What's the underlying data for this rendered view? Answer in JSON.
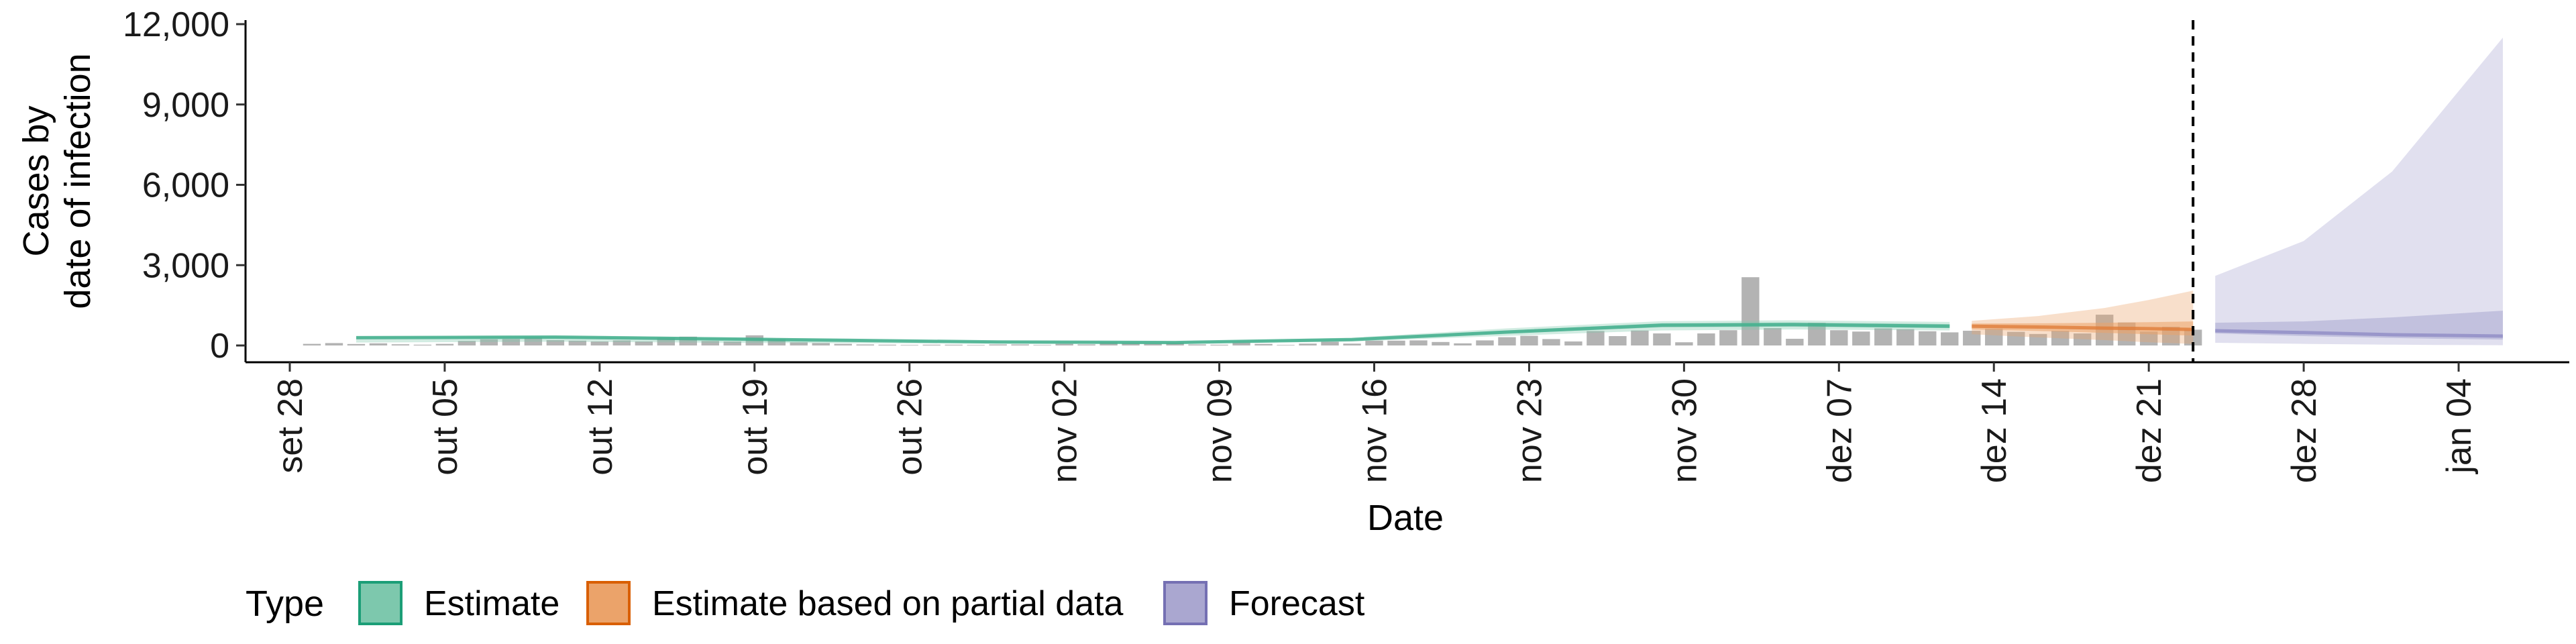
{
  "chart_data": {
    "type": "area",
    "title": "",
    "xlabel": "Date",
    "ylabel_lines": [
      "Cases by",
      "date of infection"
    ],
    "xlim": [
      "2020-09-26",
      "2021-01-09"
    ],
    "ylim": [
      0,
      12000
    ],
    "yticks": [
      0,
      3000,
      6000,
      9000,
      12000
    ],
    "ytick_labels": [
      "0",
      "3,000",
      "6,000",
      "9,000",
      "12,000"
    ],
    "xticks": [
      "2020-09-28",
      "2020-10-05",
      "2020-10-12",
      "2020-10-19",
      "2020-10-26",
      "2020-11-02",
      "2020-11-09",
      "2020-11-16",
      "2020-11-23",
      "2020-11-30",
      "2020-12-07",
      "2020-12-14",
      "2020-12-21",
      "2020-12-28",
      "2021-01-04"
    ],
    "xtick_labels": [
      "set 28",
      "out 05",
      "out 12",
      "out 19",
      "out 26",
      "nov 02",
      "nov 09",
      "nov 16",
      "nov 23",
      "nov 30",
      "dez 07",
      "dez 14",
      "dez 21",
      "dez 28",
      "jan 04"
    ],
    "forecast_start": "2020-12-23",
    "grid": false,
    "legend": {
      "position": "bottom-left",
      "title": "Type",
      "entries": [
        {
          "label": "Estimate",
          "fill": "#7dc8ad",
          "stroke": "#1b9e77"
        },
        {
          "label": "Estimate based on partial data",
          "fill": "#eba36a",
          "stroke": "#d95f02"
        },
        {
          "label": "Forecast",
          "fill": "#aaa7d0",
          "stroke": "#7570b3"
        }
      ]
    },
    "reported_cases": {
      "color": "#b3b3b3",
      "start_date": "2020-09-29",
      "values": [
        60,
        90,
        55,
        80,
        45,
        30,
        60,
        170,
        230,
        240,
        300,
        200,
        180,
        150,
        190,
        150,
        290,
        330,
        170,
        150,
        380,
        240,
        120,
        90,
        60,
        40,
        30,
        20,
        30,
        30,
        20,
        40,
        40,
        20,
        60,
        40,
        120,
        90,
        70,
        100,
        40,
        30,
        110,
        60,
        20,
        70,
        140,
        70,
        180,
        180,
        190,
        130,
        80,
        190,
        310,
        360,
        240,
        150,
        540,
        350,
        560,
        450,
        120,
        450,
        570,
        2550,
        650,
        250,
        850,
        570,
        520,
        640,
        610,
        530,
        490,
        550,
        630,
        510,
        430,
        550,
        450,
        1150,
        860,
        520,
        700,
        590
      ]
    },
    "series": [
      {
        "name": "Estimate",
        "x": [
          "2020-10-01",
          "2020-10-10",
          "2020-10-20",
          "2020-10-30",
          "2020-11-07",
          "2020-11-15",
          "2020-11-22",
          "2020-11-29",
          "2020-12-05",
          "2020-12-12"
        ],
        "median": [
          290,
          310,
          220,
          130,
          110,
          220,
          500,
          760,
          780,
          720
        ],
        "lower_90": [
          110,
          140,
          90,
          70,
          60,
          150,
          360,
          560,
          600,
          560
        ],
        "upper_90": [
          350,
          380,
          280,
          170,
          150,
          290,
          640,
          910,
          940,
          880
        ],
        "lower_50": [
          250,
          270,
          190,
          110,
          90,
          190,
          450,
          680,
          700,
          650
        ],
        "upper_50": [
          320,
          340,
          250,
          150,
          130,
          250,
          560,
          830,
          860,
          800
        ],
        "fill": "#7dc8ad",
        "line": "#3fae8b"
      },
      {
        "name": "Estimate based on partial data",
        "x": [
          "2020-12-13",
          "2020-12-16",
          "2020-12-19",
          "2020-12-21",
          "2020-12-23"
        ],
        "median": [
          720,
          690,
          650,
          630,
          600
        ],
        "lower_90": [
          420,
          300,
          200,
          120,
          60
        ],
        "upper_90": [
          920,
          1100,
          1400,
          1700,
          2050
        ],
        "lower_50": [
          600,
          540,
          470,
          420,
          370
        ],
        "upper_50": [
          820,
          830,
          850,
          870,
          900
        ],
        "fill": "#eba36a",
        "line": "#e07d3a"
      },
      {
        "name": "Forecast",
        "x": [
          "2020-12-24",
          "2020-12-28",
          "2021-01-01",
          "2021-01-03",
          "2021-01-06"
        ],
        "median": [
          550,
          480,
          400,
          380,
          350
        ],
        "lower_90": [
          100,
          60,
          30,
          20,
          10
        ],
        "upper_90": [
          2600,
          3900,
          6500,
          8500,
          11500
        ],
        "lower_50": [
          450,
          350,
          280,
          250,
          220
        ],
        "upper_50": [
          850,
          900,
          1050,
          1150,
          1300
        ],
        "fill": "#aaa7d0",
        "line": "#8f8bc4"
      }
    ]
  }
}
